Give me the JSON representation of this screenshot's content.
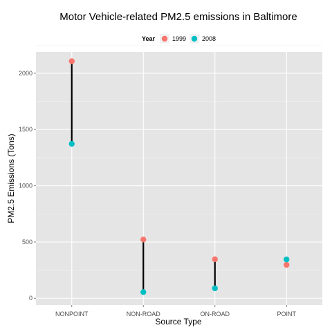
{
  "chart_data": {
    "type": "scatter",
    "title": "Motor Vehicle-related PM2.5 emissions in Baltimore",
    "xlabel": "Source Type",
    "ylabel": "PM2.5 Emissions (Tons)",
    "categories": [
      "NONPOINT",
      "NON-ROAD",
      "ON-ROAD",
      "POINT"
    ],
    "ylim": [
      -60,
      2190
    ],
    "yticks": [
      0,
      500,
      1000,
      1500,
      2000
    ],
    "grid": true,
    "legend": {
      "title": "Year",
      "position": "top",
      "entries": [
        "1999",
        "2008"
      ]
    },
    "series": [
      {
        "name": "1999",
        "color": "#F8766D",
        "values": [
          2107,
          522,
          347,
          297
        ]
      },
      {
        "name": "2008",
        "color": "#00BFC4",
        "values": [
          1373,
          55,
          89,
          345
        ]
      }
    ],
    "connector_color": "#000000"
  }
}
